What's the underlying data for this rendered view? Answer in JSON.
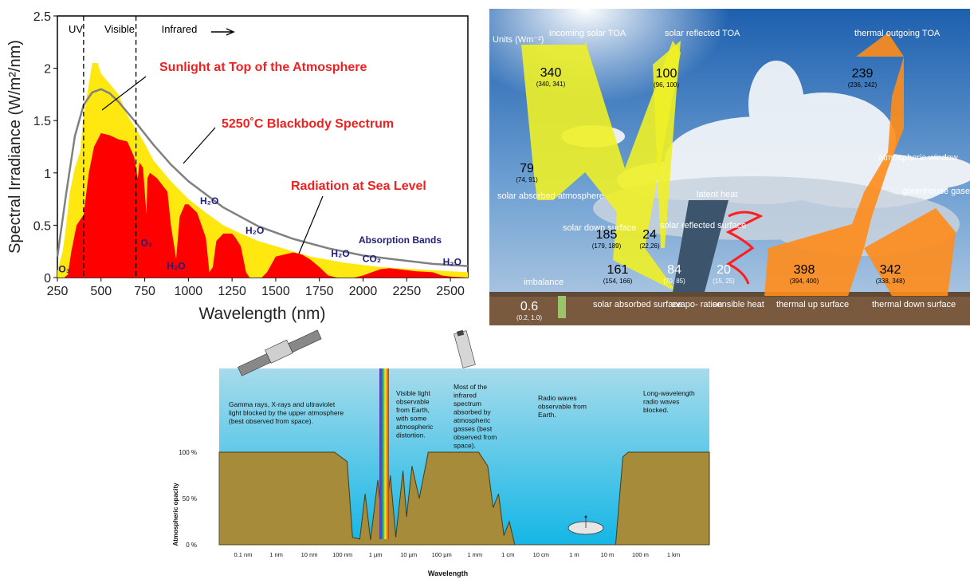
{
  "chart_data": [
    {
      "type": "area",
      "ylabel": "Spectral Irradiance (W/m²/nm)",
      "xlabel": "Wavelength (nm)",
      "xlim": [
        250,
        2600
      ],
      "ylim": [
        0,
        2.5
      ],
      "x_ticks": [
        "250",
        "500",
        "750",
        "1000",
        "1250",
        "1500",
        "1750",
        "2000",
        "2250",
        "2500"
      ],
      "y_ticks": [
        "0",
        "0.5",
        "1",
        "1.5",
        "2",
        "2.5"
      ],
      "region_labels": [
        "UV",
        "Visible",
        "Infrared"
      ],
      "region_bounds_nm": [
        400,
        700
      ],
      "annotations": {
        "toa": "Sunlight at Top of the Atmosphere",
        "blackbody": "5250˚C Blackbody Spectrum",
        "sea": "Radiation at Sea Level",
        "bands": "Absorption Bands"
      },
      "absorbers": [
        {
          "label": "O₃",
          "x": 290,
          "y": 0.05
        },
        {
          "label": "O₂",
          "x": 760,
          "y": 0.3
        },
        {
          "label": "H₂O",
          "x": 930,
          "y": 0.08
        },
        {
          "label": "H₂O",
          "x": 1120,
          "y": 0.7
        },
        {
          "label": "H₂O",
          "x": 1380,
          "y": 0.42
        },
        {
          "label": "H₂O",
          "x": 1870,
          "y": 0.2
        },
        {
          "label": "CO₂",
          "x": 2050,
          "y": 0.15
        },
        {
          "label": "H₂O",
          "x": 2510,
          "y": 0.12
        }
      ],
      "series": [
        {
          "name": "Sunlight at Top of the Atmosphere",
          "color": "#ffe810",
          "x": [
            250,
            280,
            300,
            320,
            350,
            380,
            400,
            420,
            450,
            480,
            500,
            550,
            600,
            650,
            700,
            750,
            800,
            900,
            1000,
            1100,
            1200,
            1300,
            1400,
            1500,
            1600,
            1700,
            1800,
            1900,
            2000,
            2100,
            2200,
            2300,
            2400,
            2500,
            2600
          ],
          "y": [
            0.06,
            0.25,
            0.5,
            0.8,
            1.05,
            1.2,
            1.55,
            1.75,
            2.05,
            2.05,
            1.95,
            1.85,
            1.75,
            1.55,
            1.42,
            1.28,
            1.12,
            0.92,
            0.75,
            0.62,
            0.5,
            0.42,
            0.35,
            0.3,
            0.25,
            0.2,
            0.17,
            0.14,
            0.12,
            0.1,
            0.09,
            0.08,
            0.07,
            0.06,
            0.05
          ]
        },
        {
          "name": "5250˚C Blackbody Spectrum",
          "color": "#808080",
          "x": [
            250,
            300,
            350,
            400,
            450,
            500,
            550,
            600,
            700,
            800,
            900,
            1000,
            1200,
            1400,
            1600,
            1800,
            2000,
            2200,
            2400,
            2600
          ],
          "y": [
            0.2,
            0.8,
            1.35,
            1.65,
            1.77,
            1.8,
            1.76,
            1.68,
            1.48,
            1.27,
            1.08,
            0.92,
            0.67,
            0.49,
            0.37,
            0.28,
            0.21,
            0.17,
            0.13,
            0.11
          ]
        },
        {
          "name": "Radiation at Sea Level",
          "color": "#ff0000",
          "x": [
            250,
            290,
            310,
            330,
            360,
            400,
            430,
            460,
            500,
            550,
            600,
            650,
            690,
            710,
            720,
            740,
            760,
            765,
            780,
            820,
            880,
            900,
            930,
            950,
            980,
            1000,
            1050,
            1100,
            1120,
            1140,
            1160,
            1200,
            1250,
            1270,
            1300,
            1330,
            1350,
            1400,
            1420,
            1450,
            1500,
            1550,
            1600,
            1650,
            1700,
            1750,
            1800,
            1850,
            1880,
            1950,
            2000,
            2050,
            2100,
            2150,
            2200,
            2300,
            2400,
            2450,
            2500,
            2600
          ],
          "y": [
            0,
            0,
            0.03,
            0.25,
            0.5,
            0.6,
            1.0,
            1.25,
            1.38,
            1.36,
            1.32,
            1.3,
            1.15,
            0.95,
            1.1,
            1.05,
            0.6,
            0.95,
            1.0,
            0.95,
            0.82,
            0.5,
            0.18,
            0.58,
            0.7,
            0.7,
            0.62,
            0.38,
            0.05,
            0.1,
            0.35,
            0.42,
            0.42,
            0.38,
            0.3,
            0.05,
            0,
            0,
            0,
            0.05,
            0.2,
            0.22,
            0.24,
            0.22,
            0.17,
            0.1,
            0.02,
            0,
            0,
            0,
            0.02,
            0.05,
            0.08,
            0.09,
            0.08,
            0.06,
            0.05,
            0.02,
            0.01,
            0
          ]
        }
      ]
    },
    {
      "type": "diagram",
      "units": "Units (Wm⁻²)",
      "labels": {
        "incoming": "incoming solar TOA",
        "reflected": "solar reflected TOA",
        "outgoing": "thermal outgoing TOA",
        "abs_atm": "solar absorbed atmosphere",
        "down_surf": "solar down surface",
        "refl_surf": "solar reflected surface",
        "abs_surf": "solar absorbed surface",
        "imbalance": "imbalance",
        "latent": "latent heat",
        "evap": "evapo- ration",
        "sensible": "sensible heat",
        "up_surf": "thermal up surface",
        "down_th": "thermal down surface",
        "window": "atmospheric window",
        "ghg": "greenhouse gases"
      },
      "values": [
        {
          "key": "incoming",
          "value": "340",
          "range": "(340, 341)"
        },
        {
          "key": "reflected",
          "value": "100",
          "range": "(96, 100)"
        },
        {
          "key": "outgoing",
          "value": "239",
          "range": "(236, 242)"
        },
        {
          "key": "abs_atm",
          "value": "79",
          "range": "(74, 91)"
        },
        {
          "key": "down_surf",
          "value": "185",
          "range": "(179, 189)"
        },
        {
          "key": "refl_surf",
          "value": "24",
          "range": "(22,26)"
        },
        {
          "key": "abs_surf",
          "value": "161",
          "range": "(154, 166)"
        },
        {
          "key": "evap",
          "value": "84",
          "range": "(70, 85)"
        },
        {
          "key": "sensible",
          "value": "20",
          "range": "(15, 25)"
        },
        {
          "key": "up_surf",
          "value": "398",
          "range": "(394, 400)"
        },
        {
          "key": "down_th",
          "value": "342",
          "range": "(338, 348)"
        },
        {
          "key": "imbalance",
          "value": "0.6",
          "range": "(0.2, 1.0)"
        }
      ]
    },
    {
      "type": "area",
      "xlabel": "Wavelength",
      "ylabel": "Atmospheric opacity",
      "y_ticks": [
        "100 %",
        "50 %",
        "0 %"
      ],
      "x_ticks": [
        "0.1 nm",
        "1 nm",
        "10 nm",
        "100 nm",
        "1 µm",
        "10 µm",
        "100 µm",
        "1 mm",
        "1 cm",
        "10 cm",
        "1 m",
        "10 m",
        "100 m",
        "1 km"
      ],
      "notes": [
        "Gamma rays, X-rays and ultraviolet light blocked by the upper atmosphere (best observed from space).",
        "Visible light observable from Earth, with some atmospheric distortion.",
        "Most of the infrared spectrum absorbed by atmospheric gasses (best observed from space).",
        "Radio waves observable from Earth.",
        "Long-wavelength radio waves blocked."
      ]
    }
  ]
}
